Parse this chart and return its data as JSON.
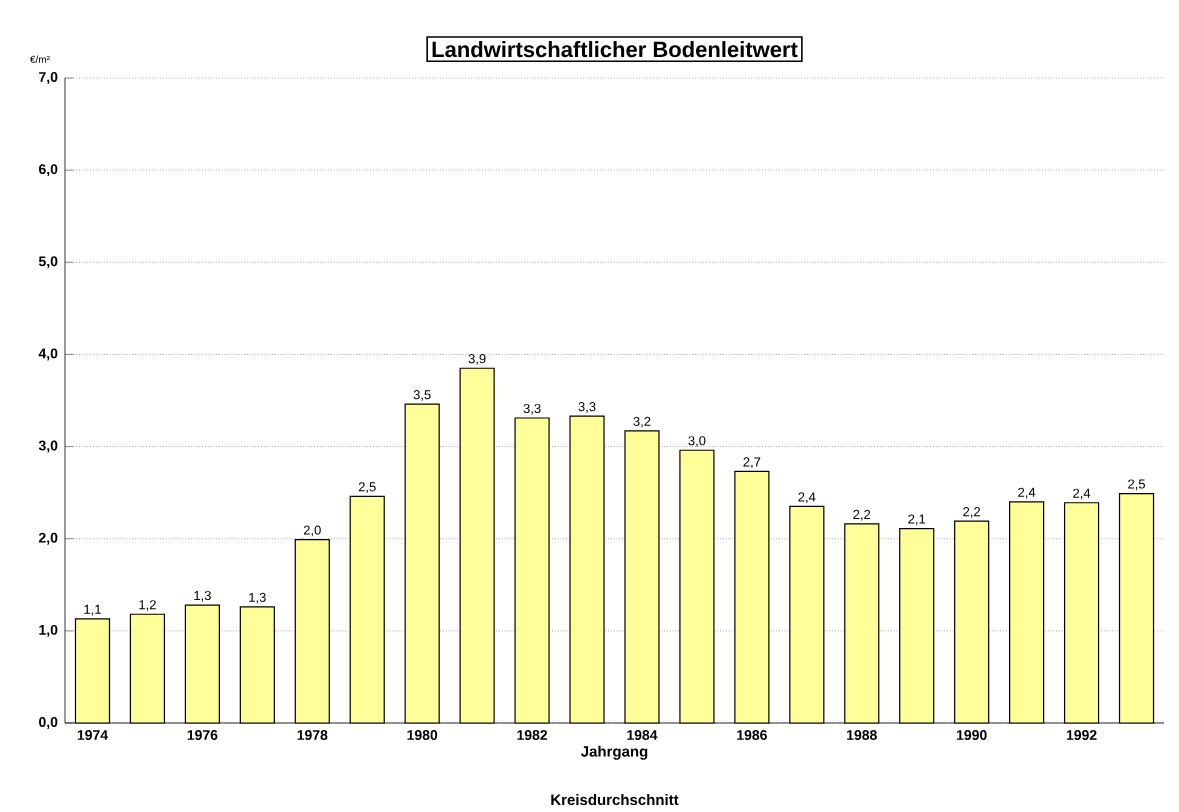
{
  "chart_data": {
    "type": "bar",
    "title": "Landwirtschaftlicher Bodenleitwert",
    "ylabel": "€/m²",
    "xlabel": "Jahrgang",
    "annotations": [
      "Kreisdurchschnitt"
    ],
    "categories": [
      "1974",
      null,
      "1976",
      null,
      "1978",
      null,
      "1980",
      null,
      "1982",
      null,
      "1984",
      null,
      "1986",
      null,
      "1988",
      null,
      "1990",
      null,
      "1992",
      null
    ],
    "values": [
      1.13,
      1.18,
      1.28,
      1.26,
      1.99,
      2.46,
      3.46,
      3.85,
      3.31,
      3.33,
      3.17,
      2.96,
      2.73,
      2.35,
      2.16,
      2.11,
      2.19,
      2.4,
      2.39,
      2.49
    ],
    "value_labels": [
      "1,1",
      "1,2",
      "1,3",
      "1,3",
      "2,0",
      "2,5",
      "3,5",
      "3,9",
      "3,3",
      "3,3",
      "3,2",
      "3,0",
      "2,7",
      "2,4",
      "2,2",
      "2,1",
      "2,2",
      "2,4",
      "2,4",
      "2,5"
    ],
    "color": "#ffff99",
    "ylim": [
      0,
      7
    ],
    "yticks": [
      {
        "value": 0,
        "label": "0,0"
      },
      {
        "value": 1,
        "label": "1,0"
      },
      {
        "value": 2,
        "label": "2,0"
      },
      {
        "value": 3,
        "label": "3,0"
      },
      {
        "value": 4,
        "label": "4,0"
      },
      {
        "value": 5,
        "label": "5,0"
      },
      {
        "value": 6,
        "label": "6,0"
      },
      {
        "value": 7,
        "label": "7,0"
      }
    ],
    "grid": "y"
  }
}
